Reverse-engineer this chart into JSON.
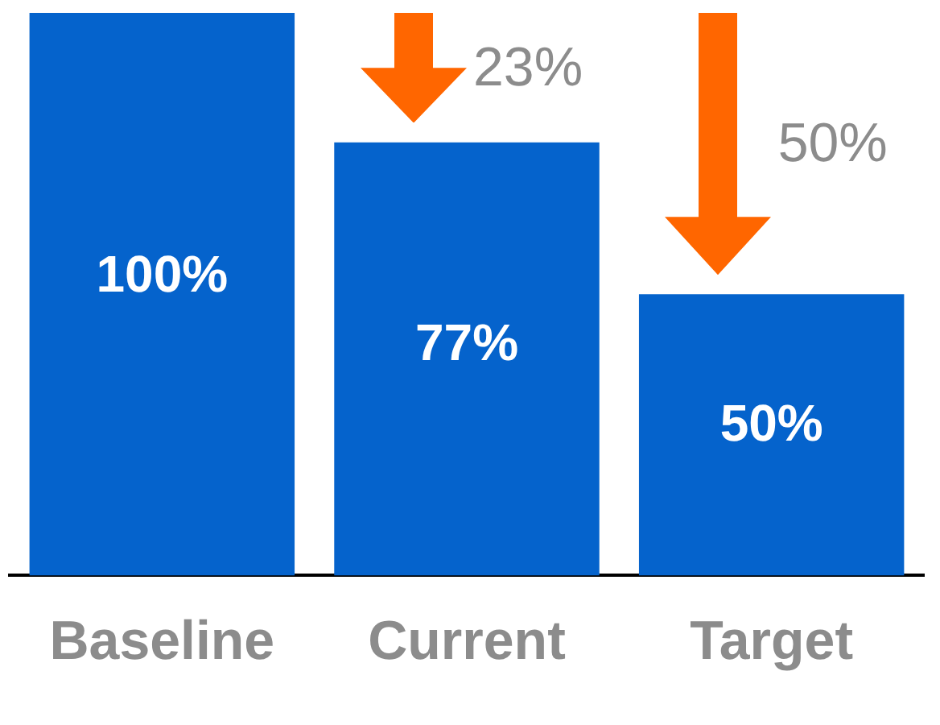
{
  "chart_data": {
    "type": "bar",
    "categories": [
      "Baseline",
      "Current",
      "Target"
    ],
    "values": [
      100,
      77,
      50
    ],
    "value_labels": [
      "100%",
      "77%",
      "50%"
    ],
    "color": "#0563cc",
    "annotations": [
      "23%",
      "50%"
    ],
    "grid": false,
    "legend": false,
    "tick_labels": "x"
  }
}
